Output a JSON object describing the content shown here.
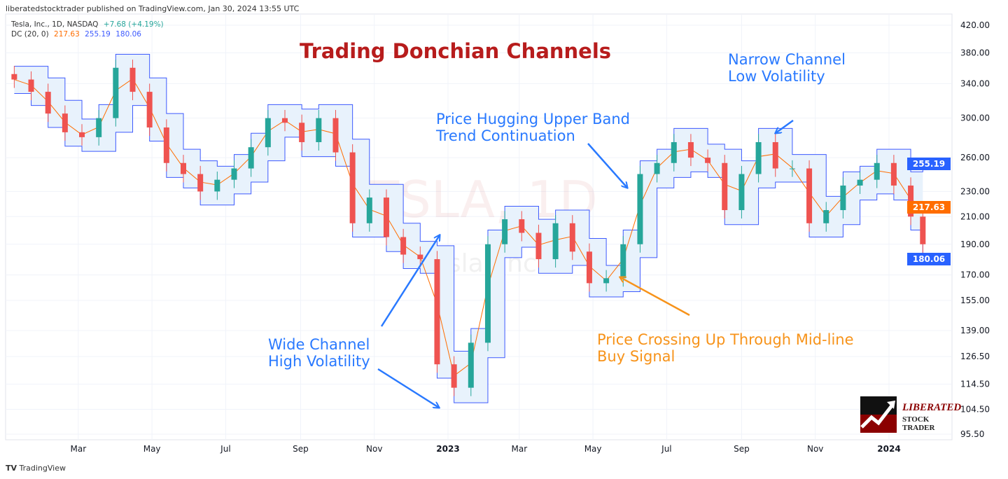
{
  "header": {
    "published": "liberatedstocktrader published on TradingView.com, Jan 30, 2024 13:55 UTC"
  },
  "legend": {
    "symbol": "Tesla, Inc., 1D, NASDAQ",
    "change": "+7.68 (+4.19%)",
    "indicator": "DC (20, 0)",
    "mid": "217.63",
    "upper": "255.19",
    "lower": "180.06"
  },
  "watermark": {
    "symbol": "TSLA, 1D",
    "name": "Tesla, Inc."
  },
  "annotations": {
    "title": "Trading Donchian Channels",
    "narrow": [
      "Narrow Channel",
      "Low Volatility"
    ],
    "hugging": [
      "Price Hugging Upper Band",
      "Trend Continuation"
    ],
    "wide": [
      "Wide Channel",
      "High Volatility"
    ],
    "crossing": [
      "Price Crossing Up Through Mid-line",
      "Buy Signal"
    ]
  },
  "logo": {
    "line1": "LIBERATED",
    "line2": "STOCK TRADER"
  },
  "footer": {
    "brand": "TradingView"
  },
  "colors": {
    "upper_lower": "#3d5afe",
    "mid": "#ff6d00",
    "fill": "#e8f2fc",
    "up": "#26a69a",
    "down": "#ef5350",
    "title": "#b71c1c",
    "annotation_blue": "#2979ff",
    "annotation_orange": "#f7931a"
  },
  "chart_data": {
    "type": "candlestick",
    "y_scale": "log",
    "ylim": [
      95.5,
      420
    ],
    "y_ticks": [
      "420.00",
      "380.00",
      "340.00",
      "300.00",
      "260.00",
      "230.00",
      "210.00",
      "190.00",
      "170.00",
      "155.00",
      "139.00",
      "126.50",
      "114.50",
      "104.50",
      "95.50"
    ],
    "x_ticks": [
      {
        "label": "Mar",
        "date": "2022-03-01"
      },
      {
        "label": "May",
        "date": "2022-05-01"
      },
      {
        "label": "Jul",
        "date": "2022-07-01"
      },
      {
        "label": "Sep",
        "date": "2022-09-01"
      },
      {
        "label": "Nov",
        "date": "2022-11-01"
      },
      {
        "label": "2023",
        "date": "2023-01-01"
      },
      {
        "label": "Mar",
        "date": "2023-03-01"
      },
      {
        "label": "May",
        "date": "2023-05-01"
      },
      {
        "label": "Jul",
        "date": "2023-07-01"
      },
      {
        "label": "Sep",
        "date": "2023-09-01"
      },
      {
        "label": "Nov",
        "date": "2023-11-01"
      },
      {
        "label": "2024",
        "date": "2024-01-01"
      }
    ],
    "dates": [
      "2022-01-07",
      "2022-01-21",
      "2022-02-04",
      "2022-02-18",
      "2022-03-04",
      "2022-03-18",
      "2022-04-01",
      "2022-04-15",
      "2022-04-29",
      "2022-05-13",
      "2022-05-27",
      "2022-06-10",
      "2022-06-24",
      "2022-07-08",
      "2022-07-22",
      "2022-08-05",
      "2022-08-19",
      "2022-09-02",
      "2022-09-16",
      "2022-09-30",
      "2022-10-14",
      "2022-10-28",
      "2022-11-11",
      "2022-11-25",
      "2022-12-09",
      "2022-12-23",
      "2023-01-06",
      "2023-01-20",
      "2023-02-03",
      "2023-02-17",
      "2023-03-03",
      "2023-03-17",
      "2023-03-31",
      "2023-04-14",
      "2023-04-28",
      "2023-05-12",
      "2023-05-26",
      "2023-06-09",
      "2023-06-23",
      "2023-07-07",
      "2023-07-21",
      "2023-08-04",
      "2023-08-18",
      "2023-09-01",
      "2023-09-15",
      "2023-09-29",
      "2023-10-13",
      "2023-10-27",
      "2023-11-10",
      "2023-11-24",
      "2023-12-08",
      "2023-12-22",
      "2024-01-05",
      "2024-01-19",
      "2024-01-29"
    ],
    "close": [
      345,
      330,
      305,
      285,
      280,
      300,
      360,
      330,
      290,
      255,
      245,
      230,
      240,
      250,
      270,
      300,
      295,
      275,
      300,
      265,
      205,
      225,
      195,
      183,
      180,
      123,
      113,
      133,
      190,
      208,
      198,
      180,
      205,
      185,
      165,
      168,
      190,
      245,
      255,
      275,
      260,
      255,
      215,
      245,
      275,
      250,
      250,
      205,
      215,
      235,
      240,
      255,
      235,
      210,
      190
    ],
    "upper": [
      362,
      362,
      347,
      320,
      299,
      315,
      378,
      378,
      347,
      305,
      268,
      257,
      252,
      263,
      284,
      315,
      315,
      310,
      315,
      315,
      278,
      236,
      236,
      205,
      192,
      189,
      129,
      140,
      200,
      218,
      218,
      208,
      215,
      215,
      194,
      176,
      200,
      257,
      268,
      289,
      289,
      273,
      268,
      257,
      289,
      289,
      263,
      263,
      226,
      247,
      252,
      268,
      268,
      247,
      255.19
    ],
    "lower": [
      328,
      314,
      290,
      271,
      266,
      266,
      285,
      314,
      276,
      242,
      233,
      219,
      219,
      228,
      238,
      257,
      280,
      261,
      261,
      252,
      195,
      195,
      185,
      174,
      171,
      117,
      107,
      107,
      126,
      181,
      188,
      171,
      171,
      176,
      157,
      157,
      160,
      181,
      233,
      242,
      247,
      242,
      204,
      204,
      233,
      238,
      238,
      195,
      195,
      204,
      223,
      228,
      223,
      200,
      180.06
    ]
  }
}
